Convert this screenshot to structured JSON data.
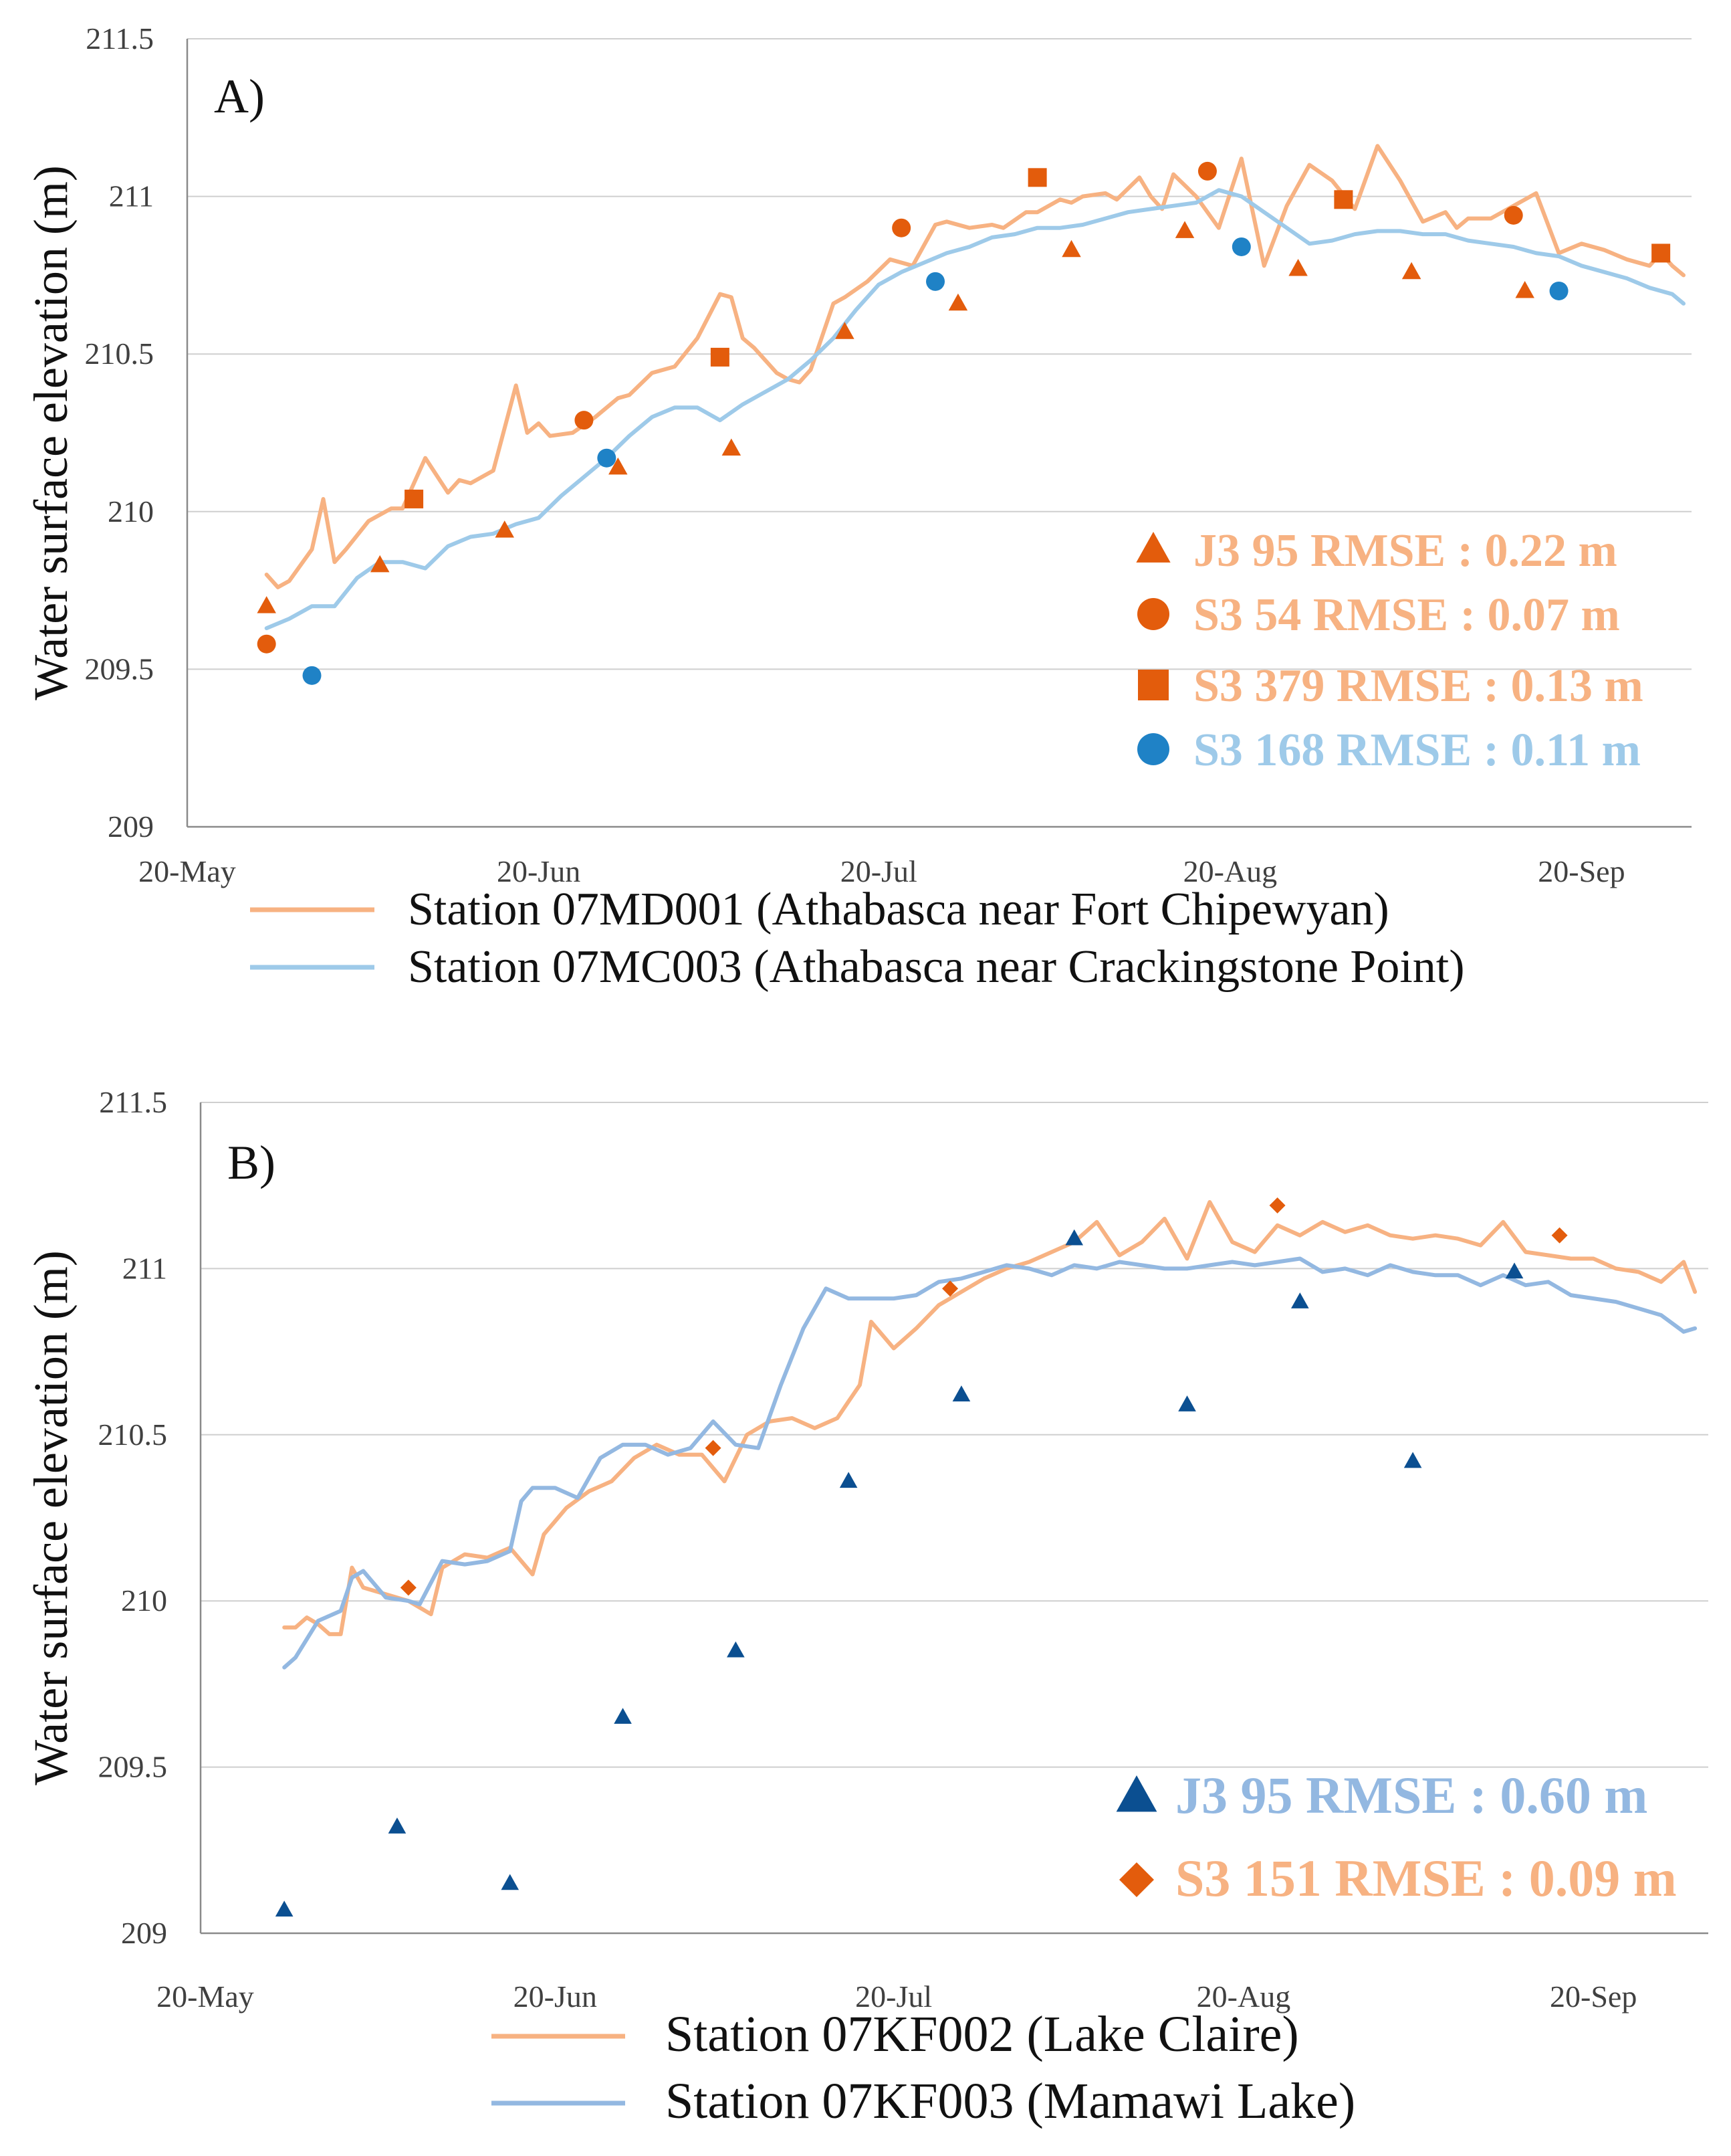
{
  "chart_data": [
    {
      "type": "line",
      "panel_label": "A)",
      "ylabel": "Water surface elevation (m)",
      "ylim": [
        209,
        211.5
      ],
      "yticks": [
        "209",
        "209.5",
        "210",
        "210.5",
        "211",
        "211.5"
      ],
      "xlim": [
        "2017-05-20",
        "2017-09-30"
      ],
      "xticks": [
        {
          "label": "20-May",
          "date": "2017-05-20"
        },
        {
          "label": "20-Jun",
          "date": "2017-06-20"
        },
        {
          "label": "20-Jul",
          "date": "2017-07-20"
        },
        {
          "label": "20-Aug",
          "date": "2017-08-20"
        },
        {
          "label": "20-Sep",
          "date": "2017-09-20"
        }
      ],
      "grid": "horizontal",
      "series": [
        {
          "name": "Station 07MD001 (Athabasca near Fort Chipewyan)",
          "kind": "line",
          "color": "#f7b282",
          "x": [
            "2017-05-27",
            "2017-05-28",
            "2017-05-29",
            "2017-05-31",
            "2017-06-01",
            "2017-06-02",
            "2017-06-03",
            "2017-06-05",
            "2017-06-07",
            "2017-06-08",
            "2017-06-10",
            "2017-06-12",
            "2017-06-13",
            "2017-06-14",
            "2017-06-16",
            "2017-06-18",
            "2017-06-19",
            "2017-06-20",
            "2017-06-21",
            "2017-06-23",
            "2017-06-25",
            "2017-06-27",
            "2017-06-28",
            "2017-06-30",
            "2017-07-02",
            "2017-07-04",
            "2017-07-06",
            "2017-07-07",
            "2017-07-08",
            "2017-07-09",
            "2017-07-11",
            "2017-07-12",
            "2017-07-13",
            "2017-07-14",
            "2017-07-16",
            "2017-07-17",
            "2017-07-19",
            "2017-07-21",
            "2017-07-23",
            "2017-07-25",
            "2017-07-26",
            "2017-07-28",
            "2017-07-30",
            "2017-07-31",
            "2017-08-02",
            "2017-08-03",
            "2017-08-05",
            "2017-08-06",
            "2017-08-07",
            "2017-08-09",
            "2017-08-10",
            "2017-08-12",
            "2017-08-13",
            "2017-08-14",
            "2017-08-15",
            "2017-08-17",
            "2017-08-19",
            "2017-08-21",
            "2017-08-23",
            "2017-08-25",
            "2017-08-27",
            "2017-08-29",
            "2017-08-31",
            "2017-09-02",
            "2017-09-04",
            "2017-09-06",
            "2017-09-08",
            "2017-09-09",
            "2017-09-10",
            "2017-09-12",
            "2017-09-14",
            "2017-09-16",
            "2017-09-18",
            "2017-09-20",
            "2017-09-22",
            "2017-09-24",
            "2017-09-26",
            "2017-09-27",
            "2017-09-28",
            "2017-09-29"
          ],
          "y": [
            209.8,
            209.76,
            209.78,
            209.88,
            210.04,
            209.84,
            209.88,
            209.97,
            210.01,
            210.01,
            210.17,
            210.06,
            210.1,
            210.09,
            210.13,
            210.4,
            210.25,
            210.28,
            210.24,
            210.25,
            210.3,
            210.36,
            210.37,
            210.44,
            210.46,
            210.55,
            210.69,
            210.68,
            210.55,
            210.52,
            210.44,
            210.42,
            210.41,
            210.45,
            210.66,
            210.68,
            210.73,
            210.8,
            210.78,
            210.91,
            210.92,
            210.9,
            210.91,
            210.9,
            210.95,
            210.95,
            210.99,
            210.98,
            211.0,
            211.01,
            210.99,
            211.06,
            211.0,
            210.96,
            211.07,
            211.0,
            210.9,
            211.12,
            210.78,
            210.97,
            211.1,
            211.05,
            210.96,
            211.16,
            211.05,
            210.92,
            210.95,
            210.9,
            210.93,
            210.93,
            210.97,
            211.01,
            210.82,
            210.85,
            210.83,
            210.8,
            210.78,
            210.82,
            210.78,
            210.75
          ]
        },
        {
          "name": "Station 07MC003 (Athabasca near Crackingstone Point)",
          "kind": "line",
          "color": "#9ecae9",
          "x": [
            "2017-05-27",
            "2017-05-29",
            "2017-05-31",
            "2017-06-02",
            "2017-06-04",
            "2017-06-06",
            "2017-06-08",
            "2017-06-10",
            "2017-06-12",
            "2017-06-14",
            "2017-06-16",
            "2017-06-18",
            "2017-06-20",
            "2017-06-22",
            "2017-06-24",
            "2017-06-26",
            "2017-06-28",
            "2017-06-30",
            "2017-07-02",
            "2017-07-04",
            "2017-07-06",
            "2017-07-08",
            "2017-07-10",
            "2017-07-12",
            "2017-07-14",
            "2017-07-16",
            "2017-07-18",
            "2017-07-20",
            "2017-07-22",
            "2017-07-24",
            "2017-07-26",
            "2017-07-28",
            "2017-07-30",
            "2017-08-01",
            "2017-08-03",
            "2017-08-05",
            "2017-08-07",
            "2017-08-09",
            "2017-08-11",
            "2017-08-13",
            "2017-08-15",
            "2017-08-17",
            "2017-08-19",
            "2017-08-21",
            "2017-08-23",
            "2017-08-25",
            "2017-08-27",
            "2017-08-29",
            "2017-08-31",
            "2017-09-02",
            "2017-09-04",
            "2017-09-06",
            "2017-09-08",
            "2017-09-10",
            "2017-09-12",
            "2017-09-14",
            "2017-09-16",
            "2017-09-18",
            "2017-09-20",
            "2017-09-22",
            "2017-09-24",
            "2017-09-26",
            "2017-09-28",
            "2017-09-29"
          ],
          "y": [
            209.63,
            209.66,
            209.7,
            209.7,
            209.79,
            209.84,
            209.84,
            209.82,
            209.89,
            209.92,
            209.93,
            209.96,
            209.98,
            210.05,
            210.11,
            210.17,
            210.24,
            210.3,
            210.33,
            210.33,
            210.29,
            210.34,
            210.38,
            210.42,
            210.48,
            210.55,
            210.64,
            210.72,
            210.76,
            210.79,
            210.82,
            210.84,
            210.87,
            210.88,
            210.9,
            210.9,
            210.91,
            210.93,
            210.95,
            210.96,
            210.97,
            210.98,
            211.02,
            211.0,
            210.95,
            210.9,
            210.85,
            210.86,
            210.88,
            210.89,
            210.89,
            210.88,
            210.88,
            210.86,
            210.85,
            210.84,
            210.82,
            210.81,
            210.78,
            210.76,
            210.74,
            210.71,
            210.69,
            210.66
          ]
        },
        {
          "name": "J3 95 RMSE : 0.22 m",
          "kind": "scatter",
          "marker": "triangle",
          "color": "#e35c0c",
          "label_color": "#f7b282",
          "x": [
            "2017-05-27",
            "2017-06-06",
            "2017-06-17",
            "2017-06-27",
            "2017-07-07",
            "2017-07-17",
            "2017-07-27",
            "2017-08-06",
            "2017-08-16",
            "2017-08-26",
            "2017-09-05",
            "2017-09-15"
          ],
          "y": [
            209.7,
            209.83,
            209.94,
            210.14,
            210.2,
            210.57,
            210.66,
            210.83,
            210.89,
            210.77,
            210.76,
            210.7
          ]
        },
        {
          "name": "S3 54 RMSE : 0.07 m",
          "kind": "scatter",
          "marker": "circle",
          "color": "#e35c0c",
          "label_color": "#f7b282",
          "x": [
            "2017-05-27",
            "2017-06-24",
            "2017-07-22",
            "2017-08-18",
            "2017-09-14"
          ],
          "y": [
            209.58,
            210.29,
            210.9,
            211.08,
            210.94
          ]
        },
        {
          "name": "S3 379 RMSE : 0.13 m",
          "kind": "scatter",
          "marker": "square",
          "color": "#e35c0c",
          "label_color": "#f7b282",
          "x": [
            "2017-06-09",
            "2017-07-06",
            "2017-08-03",
            "2017-08-30",
            "2017-09-27"
          ],
          "y": [
            210.04,
            210.49,
            211.06,
            210.99,
            210.82
          ]
        },
        {
          "name": "S3 168 RMSE : 0.11 m",
          "kind": "scatter",
          "marker": "circle",
          "color": "#1f82c6",
          "label_color": "#9ecae9",
          "x": [
            "2017-05-31",
            "2017-06-26",
            "2017-07-25",
            "2017-08-21",
            "2017-09-18"
          ],
          "y": [
            209.48,
            210.17,
            210.73,
            210.84,
            210.7
          ]
        }
      ]
    },
    {
      "type": "line",
      "panel_label": "B)",
      "ylabel": "Water surface elevation (m)",
      "ylim": [
        209,
        211.5
      ],
      "yticks": [
        "209",
        "209.5",
        "210",
        "210.5",
        "211",
        "211.5"
      ],
      "xlim": [
        "2017-05-20",
        "2017-09-30"
      ],
      "xticks": [
        {
          "label": "20-May",
          "date": "2017-05-20"
        },
        {
          "label": "20-Jun",
          "date": "2017-06-20"
        },
        {
          "label": "20-Jul",
          "date": "2017-07-20"
        },
        {
          "label": "20-Aug",
          "date": "2017-08-20"
        },
        {
          "label": "20-Sep",
          "date": "2017-09-20"
        }
      ],
      "grid": "horizontal",
      "series": [
        {
          "name": "Station 07KF002 (Lake Claire)",
          "kind": "line",
          "color": "#f7b282",
          "x": [
            "2017-05-27",
            "2017-05-28",
            "2017-05-29",
            "2017-05-30",
            "2017-05-31",
            "2017-06-01",
            "2017-06-02",
            "2017-06-03",
            "2017-06-05",
            "2017-06-07",
            "2017-06-09",
            "2017-06-10",
            "2017-06-12",
            "2017-06-14",
            "2017-06-16",
            "2017-06-18",
            "2017-06-19",
            "2017-06-20",
            "2017-06-21",
            "2017-06-23",
            "2017-06-25",
            "2017-06-27",
            "2017-06-29",
            "2017-07-01",
            "2017-07-03",
            "2017-07-05",
            "2017-07-07",
            "2017-07-09",
            "2017-07-11",
            "2017-07-13",
            "2017-07-15",
            "2017-07-16",
            "2017-07-17",
            "2017-07-18",
            "2017-07-20",
            "2017-07-22",
            "2017-07-24",
            "2017-07-26",
            "2017-07-28",
            "2017-07-30",
            "2017-08-01",
            "2017-08-03",
            "2017-08-05",
            "2017-08-07",
            "2017-08-09",
            "2017-08-11",
            "2017-08-13",
            "2017-08-15",
            "2017-08-17",
            "2017-08-19",
            "2017-08-21",
            "2017-08-23",
            "2017-08-25",
            "2017-08-27",
            "2017-08-29",
            "2017-08-31",
            "2017-09-02",
            "2017-09-04",
            "2017-09-06",
            "2017-09-08",
            "2017-09-10",
            "2017-09-12",
            "2017-09-14",
            "2017-09-16",
            "2017-09-18",
            "2017-09-20",
            "2017-09-22",
            "2017-09-24",
            "2017-09-26",
            "2017-09-28",
            "2017-09-29"
          ],
          "y": [
            209.92,
            209.92,
            209.95,
            209.93,
            209.9,
            209.9,
            210.1,
            210.04,
            210.02,
            210.0,
            209.96,
            210.1,
            210.14,
            210.13,
            210.16,
            210.08,
            210.2,
            210.24,
            210.28,
            210.33,
            210.36,
            210.43,
            210.47,
            210.44,
            210.44,
            210.36,
            210.5,
            210.54,
            210.55,
            210.52,
            210.55,
            210.6,
            210.65,
            210.84,
            210.76,
            210.82,
            210.89,
            210.93,
            210.97,
            211.0,
            211.02,
            211.05,
            211.08,
            211.14,
            211.04,
            211.08,
            211.15,
            211.03,
            211.2,
            211.08,
            211.05,
            211.13,
            211.1,
            211.14,
            211.11,
            211.13,
            211.1,
            211.09,
            211.1,
            211.09,
            211.07,
            211.14,
            211.05,
            211.04,
            211.03,
            211.03,
            211.0,
            210.99,
            210.96,
            211.02,
            210.93
          ]
        },
        {
          "name": "Station 07KF003 (Mamawi Lake)",
          "kind": "line",
          "color": "#93b8e1",
          "x": [
            "2017-05-27",
            "2017-05-28",
            "2017-05-30",
            "2017-06-01",
            "2017-06-02",
            "2017-06-03",
            "2017-06-05",
            "2017-06-07",
            "2017-06-08",
            "2017-06-10",
            "2017-06-12",
            "2017-06-14",
            "2017-06-16",
            "2017-06-17",
            "2017-06-18",
            "2017-06-20",
            "2017-06-22",
            "2017-06-24",
            "2017-06-26",
            "2017-06-28",
            "2017-06-30",
            "2017-07-02",
            "2017-07-04",
            "2017-07-06",
            "2017-07-08",
            "2017-07-10",
            "2017-07-12",
            "2017-07-14",
            "2017-07-16",
            "2017-07-18",
            "2017-07-20",
            "2017-07-22",
            "2017-07-24",
            "2017-07-26",
            "2017-07-28",
            "2017-07-30",
            "2017-08-01",
            "2017-08-03",
            "2017-08-05",
            "2017-08-07",
            "2017-08-09",
            "2017-08-11",
            "2017-08-13",
            "2017-08-15",
            "2017-08-17",
            "2017-08-19",
            "2017-08-21",
            "2017-08-23",
            "2017-08-25",
            "2017-08-27",
            "2017-08-29",
            "2017-08-31",
            "2017-09-02",
            "2017-09-04",
            "2017-09-06",
            "2017-09-08",
            "2017-09-10",
            "2017-09-12",
            "2017-09-14",
            "2017-09-16",
            "2017-09-18",
            "2017-09-20",
            "2017-09-22",
            "2017-09-24",
            "2017-09-26",
            "2017-09-28",
            "2017-09-29"
          ],
          "y": [
            209.8,
            209.83,
            209.94,
            209.97,
            210.07,
            210.09,
            210.01,
            210.0,
            209.99,
            210.12,
            210.11,
            210.12,
            210.15,
            210.3,
            210.34,
            210.34,
            210.31,
            210.43,
            210.47,
            210.47,
            210.44,
            210.46,
            210.54,
            210.47,
            210.46,
            210.65,
            210.82,
            210.94,
            210.91,
            210.91,
            210.91,
            210.92,
            210.96,
            210.97,
            210.99,
            211.01,
            211.0,
            210.98,
            211.01,
            211.0,
            211.02,
            211.01,
            211.0,
            211.0,
            211.01,
            211.02,
            211.01,
            211.02,
            211.03,
            210.99,
            211.0,
            210.98,
            211.01,
            210.99,
            210.98,
            210.98,
            210.95,
            210.98,
            210.95,
            210.96,
            210.92,
            210.91,
            210.9,
            210.88,
            210.86,
            210.81,
            210.82
          ]
        },
        {
          "name": "J3 95 RMSE : 0.60 m",
          "kind": "scatter",
          "marker": "triangle",
          "color": "#0b4f91",
          "label_color": "#93b8e1",
          "x": [
            "2017-05-27",
            "2017-06-06",
            "2017-06-16",
            "2017-06-26",
            "2017-07-06",
            "2017-07-16",
            "2017-07-26",
            "2017-08-05",
            "2017-08-15",
            "2017-08-25",
            "2017-09-04",
            "2017-09-13"
          ],
          "y": [
            209.07,
            209.32,
            209.15,
            209.65,
            209.85,
            210.36,
            210.62,
            211.09,
            210.59,
            210.9,
            210.42,
            210.99
          ]
        },
        {
          "name": "S3 151 RMSE : 0.09 m",
          "kind": "scatter",
          "marker": "diamond",
          "color": "#e35c0c",
          "label_color": "#f7b282",
          "x": [
            "2017-06-07",
            "2017-07-04",
            "2017-07-25",
            "2017-08-23",
            "2017-09-17"
          ],
          "y": [
            210.04,
            210.46,
            210.94,
            211.19,
            211.1
          ]
        }
      ]
    }
  ]
}
